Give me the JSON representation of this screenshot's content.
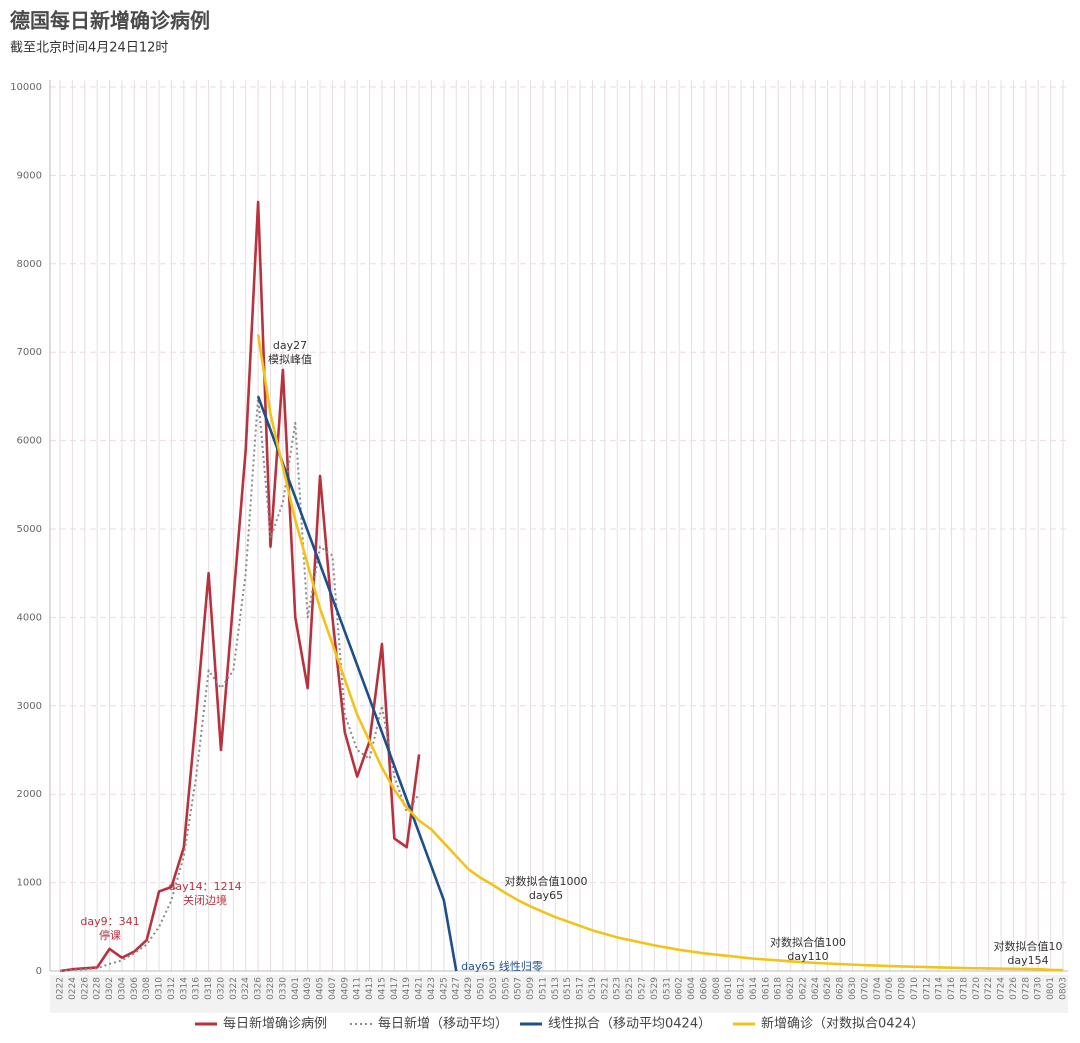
{
  "chart_data": {
    "type": "line",
    "title": "德国每日新增确诊病例",
    "subtitle": "截至北京时间4月24日12时",
    "categories": [
      "0222",
      "0224",
      "0226",
      "0228",
      "0302",
      "0304",
      "0306",
      "0308",
      "0310",
      "0312",
      "0314",
      "0316",
      "0318",
      "0320",
      "0322",
      "0324",
      "0326",
      "0328",
      "0330",
      "0401",
      "0403",
      "0405",
      "0407",
      "0409",
      "0411",
      "0413",
      "0415",
      "0417",
      "0419",
      "0421",
      "0423",
      "0425",
      "0427",
      "0429",
      "0501",
      "0503",
      "0505",
      "0507",
      "0509",
      "0511",
      "0513",
      "0515",
      "0517",
      "0519",
      "0521",
      "0523",
      "0525",
      "0527",
      "0529",
      "0531",
      "0602",
      "0604",
      "0606",
      "0608",
      "0610",
      "0612",
      "0614",
      "0616",
      "0618",
      "0620",
      "0622",
      "0624",
      "0626",
      "0628",
      "0630",
      "0702",
      "0704",
      "0706",
      "0708",
      "0710",
      "0712",
      "0714",
      "0716",
      "0718",
      "0720",
      "0722",
      "0724",
      "0726",
      "0728",
      "0730",
      "0801",
      "0803"
    ],
    "series": [
      {
        "name": "每日新增确诊病例",
        "color": "#b8323e",
        "style": "solid",
        "values": [
          0,
          20,
          30,
          40,
          250,
          150,
          220,
          350,
          900,
          950,
          1400,
          2900,
          4500,
          2500,
          4200,
          5900,
          8700,
          4800,
          6800,
          4000,
          3200,
          5600,
          4000,
          2700,
          2200,
          2600,
          3700,
          1500,
          1400,
          2450,
          null,
          null,
          null,
          null,
          null,
          null,
          null,
          null,
          null,
          null,
          null,
          null,
          null,
          null,
          null,
          null,
          null,
          null,
          null,
          null,
          null,
          null,
          null,
          null,
          null,
          null,
          null,
          null,
          null,
          null,
          null,
          null,
          null,
          null,
          null,
          null,
          null,
          null,
          null,
          null,
          null,
          null,
          null,
          null,
          null,
          null,
          null,
          null,
          null,
          null,
          null,
          null
        ]
      },
      {
        "name": "每日新增（移动平均）",
        "color": "#8a8a8a",
        "style": "dotted",
        "values": [
          0,
          10,
          20,
          30,
          80,
          120,
          200,
          300,
          500,
          800,
          1300,
          2200,
          3400,
          3200,
          3400,
          4500,
          6500,
          4900,
          5300,
          6200,
          4000,
          4800,
          4700,
          2900,
          2500,
          2400,
          3000,
          2200,
          1800,
          2000,
          null,
          null,
          null,
          null,
          null,
          null,
          null,
          null,
          null,
          null,
          null,
          null,
          null,
          null,
          null,
          null,
          null,
          null,
          null,
          null,
          null,
          null,
          null,
          null,
          null,
          null,
          null,
          null,
          null,
          null,
          null,
          null,
          null,
          null,
          null,
          null,
          null,
          null,
          null,
          null,
          null,
          null,
          null,
          null,
          null,
          null,
          null,
          null,
          null,
          null,
          null,
          null
        ]
      },
      {
        "name": "线性拟合（移动平均0424）",
        "color": "#1d4f8a",
        "style": "solid",
        "values": [
          null,
          null,
          null,
          null,
          null,
          null,
          null,
          null,
          null,
          null,
          null,
          null,
          null,
          null,
          null,
          null,
          6500,
          6120,
          5740,
          5360,
          4980,
          4600,
          4220,
          3840,
          3460,
          3080,
          2700,
          2320,
          1940,
          1560,
          1180,
          800,
          0,
          null,
          null,
          null,
          null,
          null,
          null,
          null,
          null,
          null,
          null,
          null,
          null,
          null,
          null,
          null,
          null,
          null,
          null,
          null,
          null,
          null,
          null,
          null,
          null,
          null,
          null,
          null,
          null,
          null,
          null,
          null,
          null,
          null,
          null,
          null,
          null,
          null,
          null,
          null,
          null,
          null,
          null,
          null,
          null,
          null,
          null,
          null,
          null,
          null
        ]
      },
      {
        "name": "新增确诊（对数拟合0424）",
        "color": "#f2c318",
        "style": "solid",
        "values": [
          null,
          null,
          null,
          null,
          null,
          null,
          null,
          null,
          null,
          null,
          null,
          null,
          null,
          null,
          null,
          null,
          7200,
          6300,
          5700,
          5100,
          4600,
          4100,
          3700,
          3300,
          2900,
          2600,
          2300,
          2050,
          1850,
          1700,
          1600,
          1450,
          1300,
          1150,
          1050,
          970,
          880,
          800,
          730,
          670,
          610,
          560,
          510,
          460,
          420,
          380,
          350,
          320,
          290,
          265,
          240,
          220,
          200,
          185,
          170,
          155,
          140,
          130,
          120,
          110,
          100,
          92,
          85,
          78,
          72,
          66,
          61,
          56,
          52,
          48,
          44,
          40,
          37,
          34,
          31,
          29,
          27,
          25,
          23,
          21,
          12,
          10
        ]
      }
    ],
    "annotations": [
      {
        "text": [
          "day27",
          "模拟峰值"
        ],
        "color": "#333333"
      },
      {
        "text": [
          "day9：341",
          "停课"
        ],
        "color": "#b8323e"
      },
      {
        "text": [
          "day14：1214",
          "关闭边境"
        ],
        "color": "#b8323e"
      },
      {
        "text": [
          "对数拟合值1000",
          "day65"
        ],
        "color": "#333333"
      },
      {
        "text": [
          "对数拟合值100",
          "day110"
        ],
        "color": "#333333"
      },
      {
        "text": [
          "对数拟合值10",
          "day154"
        ],
        "color": "#333333"
      },
      {
        "text": [
          "day65 线性归零"
        ],
        "color": "#1d4f8a"
      }
    ],
    "ylim": [
      0,
      10000
    ],
    "yticks": [
      0,
      1000,
      2000,
      3000,
      4000,
      5000,
      6000,
      7000,
      8000,
      9000,
      10000
    ],
    "grid": true,
    "legend": "bottom"
  }
}
